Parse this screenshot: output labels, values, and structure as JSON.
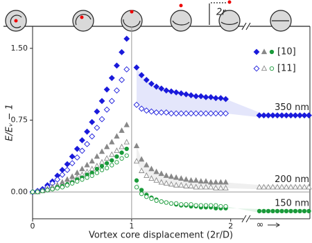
{
  "chart_data": {
    "type": "scatter",
    "xlabel": "Vortex core displacement (2r/D)",
    "ylabel": "E/Eᵥ − 1",
    "top_label": "2r",
    "infinity_label": "∞",
    "xlim": [
      0,
      2.8
    ],
    "ylim": [
      -0.28,
      1.73
    ],
    "xticks": [
      0,
      1,
      2
    ],
    "yticks": [
      {
        "value": 0,
        "label": "0.00"
      },
      {
        "value": 0.75,
        "label": "0.75"
      },
      {
        "value": 1.5,
        "label": "1.50"
      }
    ],
    "x": [
      0,
      0.05,
      0.1,
      0.15,
      0.2,
      0.25,
      0.3,
      0.35,
      0.4,
      0.45,
      0.5,
      0.55,
      0.6,
      0.65,
      0.7,
      0.75,
      0.8,
      0.85,
      0.9,
      0.95,
      1.0,
      1.05,
      1.1,
      1.15,
      1.2,
      1.25,
      1.3,
      1.35,
      1.4,
      1.45,
      1.5,
      1.55,
      1.6,
      1.65,
      1.7,
      1.75,
      1.8,
      1.85,
      1.9,
      1.95
    ],
    "series": [
      {
        "source": "[10]",
        "color": "#1a1adb",
        "marker": "diamond",
        "filled": true,
        "values": [
          0,
          0.01,
          0.03,
          0.07,
          0.11,
          0.17,
          0.23,
          0.29,
          0.37,
          0.45,
          0.54,
          0.63,
          0.73,
          0.84,
          0.95,
          1.07,
          1.19,
          1.32,
          1.46,
          1.6,
          null,
          1.3,
          1.22,
          1.17,
          1.13,
          1.1,
          1.08,
          1.06,
          1.05,
          1.04,
          1.03,
          1.02,
          1.01,
          1.0,
          1.0,
          0.99,
          0.99,
          0.98,
          0.98,
          0.97
        ]
      },
      {
        "source": "[11]",
        "color": "#1a1adb",
        "marker": "diamond",
        "filled": false,
        "values": [
          0,
          0.01,
          0.02,
          0.05,
          0.09,
          0.13,
          0.18,
          0.23,
          0.3,
          0.36,
          0.43,
          0.5,
          0.58,
          0.67,
          0.76,
          0.86,
          0.95,
          1.06,
          1.17,
          1.28,
          null,
          0.91,
          0.87,
          0.85,
          0.84,
          0.83,
          0.83,
          0.83,
          0.82,
          0.82,
          0.82,
          0.82,
          0.82,
          0.82,
          0.82,
          0.82,
          0.82,
          0.82,
          0.82,
          0.82
        ]
      },
      {
        "source": "[10]",
        "color": "#888888",
        "marker": "triangle",
        "filled": true,
        "values": [
          0,
          0.0,
          0.01,
          0.03,
          0.05,
          0.07,
          0.1,
          0.13,
          0.16,
          0.2,
          0.24,
          0.28,
          0.32,
          0.37,
          0.42,
          0.47,
          0.52,
          0.58,
          0.64,
          0.7,
          null,
          0.48,
          0.34,
          0.28,
          0.24,
          0.21,
          0.19,
          0.17,
          0.16,
          0.15,
          0.14,
          0.13,
          0.12,
          0.12,
          0.11,
          0.11,
          0.1,
          0.1,
          0.1,
          0.1
        ]
      },
      {
        "source": "[11]",
        "color": "#888888",
        "marker": "triangle",
        "filled": false,
        "values": [
          0,
          0.0,
          0.01,
          0.02,
          0.04,
          0.06,
          0.07,
          0.09,
          0.12,
          0.15,
          0.18,
          0.21,
          0.24,
          0.27,
          0.31,
          0.35,
          0.39,
          0.43,
          0.47,
          0.52,
          null,
          0.32,
          0.22,
          0.17,
          0.14,
          0.12,
          0.1,
          0.09,
          0.08,
          0.07,
          0.07,
          0.06,
          0.06,
          0.05,
          0.05,
          0.05,
          0.05,
          0.04,
          0.04,
          0.04
        ]
      },
      {
        "source": "[10]",
        "color": "#1a9a3a",
        "marker": "circle",
        "filled": true,
        "values": [
          0,
          0.0,
          0.01,
          0.02,
          0.03,
          0.05,
          0.06,
          0.08,
          0.1,
          0.13,
          0.15,
          0.18,
          0.2,
          0.24,
          0.27,
          0.3,
          0.33,
          0.37,
          0.41,
          0.45,
          null,
          0.12,
          0.02,
          -0.03,
          -0.06,
          -0.08,
          -0.1,
          -0.11,
          -0.12,
          -0.13,
          -0.14,
          -0.14,
          -0.15,
          -0.15,
          -0.16,
          -0.16,
          -0.16,
          -0.17,
          -0.17,
          -0.17
        ]
      },
      {
        "source": "[11]",
        "color": "#1a9a3a",
        "marker": "circle",
        "filled": false,
        "values": [
          0,
          0.0,
          0.01,
          0.02,
          0.03,
          0.04,
          0.05,
          0.07,
          0.09,
          0.11,
          0.13,
          0.15,
          0.17,
          0.2,
          0.23,
          0.25,
          0.28,
          0.31,
          0.35,
          0.38,
          null,
          0.05,
          -0.02,
          -0.05,
          -0.07,
          -0.09,
          -0.1,
          -0.11,
          -0.12,
          -0.12,
          -0.13,
          -0.13,
          -0.13,
          -0.14,
          -0.14,
          -0.14,
          -0.14,
          -0.14,
          -0.15,
          -0.15
        ]
      }
    ],
    "asymptotes": [
      {
        "label": "350 nm",
        "value": 0.8,
        "color": "#1a1adb",
        "marker": "diamond",
        "filled": true,
        "band": "#e4e6fb"
      },
      {
        "label": "200 nm",
        "value": 0.05,
        "color": "#888888",
        "marker": "triangle",
        "filled": false,
        "band": "#efefef"
      },
      {
        "label": "150 nm",
        "value": -0.2,
        "color": "#1a9a3a",
        "marker": "circle",
        "filled": true,
        "band": "#e2f3e7"
      }
    ],
    "legend": "upper right"
  }
}
